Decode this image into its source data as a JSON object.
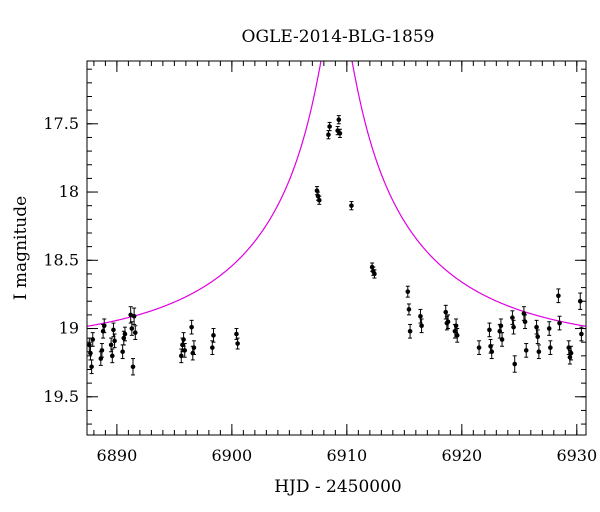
{
  "chart_data": {
    "type": "scatter",
    "title": "OGLE-2014-BLG-1859",
    "xlabel": "HJD - 2450000",
    "ylabel": "I magnitude",
    "xlim": [
      6887.4,
      6930.8
    ],
    "ylim": [
      19.78,
      17.04
    ],
    "y_inverted": true,
    "grid": false,
    "xticks": [
      6890,
      6900,
      6910,
      6920,
      6930
    ],
    "xtick_labels": [
      "6890",
      "6900",
      "6910",
      "6920",
      "6930"
    ],
    "yticks": [
      17.5,
      18,
      18.5,
      19,
      19.5
    ],
    "ytick_labels": [
      "17.5",
      "18",
      "18.5",
      "19",
      "19.5"
    ],
    "x_minor_step": 1,
    "y_minor_step": 0.1,
    "model": {
      "color": "#e000e0",
      "baseline_mag": 19.13,
      "t0": 6909.1,
      "tE": 18.5,
      "u0": 0.058,
      "fs_fraction": 0.6
    },
    "point_color": "#000000",
    "points": [
      [
        6887.6,
        19.12,
        0.05
      ],
      [
        6887.7,
        19.18,
        0.05
      ],
      [
        6887.8,
        19.28,
        0.05
      ],
      [
        6887.9,
        19.08,
        0.05
      ],
      [
        6888.6,
        19.22,
        0.05
      ],
      [
        6888.7,
        19.16,
        0.05
      ],
      [
        6888.8,
        19.02,
        0.05
      ],
      [
        6888.9,
        18.98,
        0.05
      ],
      [
        6889.5,
        19.12,
        0.05
      ],
      [
        6889.6,
        19.2,
        0.05
      ],
      [
        6889.7,
        19.01,
        0.05
      ],
      [
        6889.8,
        19.09,
        0.05
      ],
      [
        6890.5,
        19.17,
        0.05
      ],
      [
        6890.6,
        19.07,
        0.05
      ],
      [
        6890.7,
        19.04,
        0.05
      ],
      [
        6891.2,
        18.9,
        0.06
      ],
      [
        6891.3,
        19.0,
        0.05
      ],
      [
        6891.4,
        19.28,
        0.06
      ],
      [
        6891.5,
        18.91,
        0.06
      ],
      [
        6891.6,
        19.03,
        0.05
      ],
      [
        6895.6,
        19.2,
        0.05
      ],
      [
        6895.7,
        19.12,
        0.05
      ],
      [
        6895.8,
        19.08,
        0.05
      ],
      [
        6895.9,
        19.16,
        0.05
      ],
      [
        6896.5,
        18.99,
        0.05
      ],
      [
        6896.6,
        19.18,
        0.05
      ],
      [
        6896.7,
        19.14,
        0.05
      ],
      [
        6898.3,
        19.14,
        0.05
      ],
      [
        6898.4,
        19.05,
        0.05
      ],
      [
        6900.4,
        19.04,
        0.04
      ],
      [
        6900.5,
        19.11,
        0.04
      ],
      [
        6907.4,
        17.99,
        0.03
      ],
      [
        6907.5,
        18.03,
        0.03
      ],
      [
        6907.6,
        18.06,
        0.03
      ],
      [
        6908.4,
        17.58,
        0.03
      ],
      [
        6908.5,
        17.52,
        0.03
      ],
      [
        6909.2,
        17.55,
        0.03
      ],
      [
        6909.3,
        17.47,
        0.03
      ],
      [
        6909.4,
        17.57,
        0.03
      ],
      [
        6910.4,
        18.1,
        0.03
      ],
      [
        6912.2,
        18.55,
        0.03
      ],
      [
        6912.3,
        18.58,
        0.03
      ],
      [
        6912.4,
        18.6,
        0.03
      ],
      [
        6915.3,
        18.73,
        0.04
      ],
      [
        6915.4,
        18.86,
        0.04
      ],
      [
        6915.5,
        19.02,
        0.05
      ],
      [
        6916.4,
        18.91,
        0.05
      ],
      [
        6916.5,
        18.98,
        0.05
      ],
      [
        6918.6,
        18.88,
        0.05
      ],
      [
        6918.7,
        18.96,
        0.05
      ],
      [
        6918.8,
        18.95,
        0.05
      ],
      [
        6919.4,
        19.02,
        0.05
      ],
      [
        6919.5,
        18.98,
        0.05
      ],
      [
        6919.6,
        19.05,
        0.05
      ],
      [
        6921.5,
        19.14,
        0.05
      ],
      [
        6922.4,
        19.01,
        0.05
      ],
      [
        6922.5,
        19.13,
        0.05
      ],
      [
        6922.6,
        19.17,
        0.05
      ],
      [
        6923.3,
        19.02,
        0.05
      ],
      [
        6923.4,
        18.98,
        0.05
      ],
      [
        6923.5,
        19.08,
        0.05
      ],
      [
        6924.4,
        18.92,
        0.05
      ],
      [
        6924.5,
        18.99,
        0.05
      ],
      [
        6924.6,
        19.26,
        0.06
      ],
      [
        6925.4,
        18.89,
        0.05
      ],
      [
        6925.5,
        18.95,
        0.05
      ],
      [
        6925.6,
        19.16,
        0.05
      ],
      [
        6926.5,
        18.99,
        0.05
      ],
      [
        6926.6,
        19.06,
        0.05
      ],
      [
        6926.7,
        19.17,
        0.05
      ],
      [
        6927.6,
        19.0,
        0.05
      ],
      [
        6927.7,
        19.14,
        0.05
      ],
      [
        6928.4,
        18.76,
        0.05
      ],
      [
        6928.5,
        18.96,
        0.05
      ],
      [
        6929.3,
        19.14,
        0.05
      ],
      [
        6929.4,
        19.21,
        0.05
      ],
      [
        6929.5,
        19.18,
        0.05
      ],
      [
        6930.3,
        18.8,
        0.06
      ],
      [
        6930.4,
        19.04,
        0.05
      ]
    ]
  }
}
